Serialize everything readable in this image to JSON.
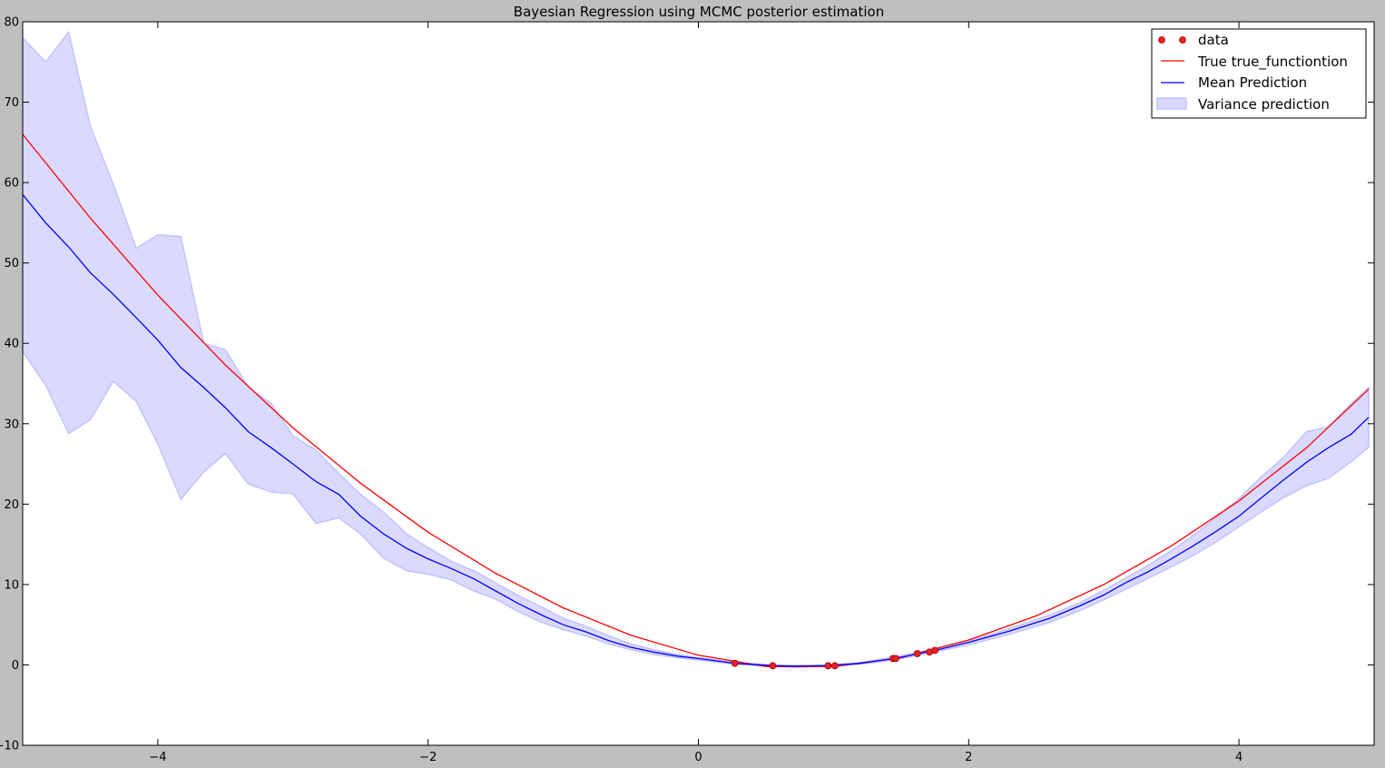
{
  "chart_data": {
    "type": "line",
    "title": "Bayesian Regression using MCMC posterior estimation",
    "xlabel": "",
    "ylabel": "",
    "xlim": [
      -5,
      5
    ],
    "ylim": [
      -10,
      80
    ],
    "x_ticks": [
      -4,
      -2,
      0,
      2,
      4
    ],
    "x_tick_labels": [
      "−4",
      "−2",
      "0",
      "2",
      "4"
    ],
    "y_ticks": [
      -10,
      0,
      10,
      20,
      30,
      40,
      50,
      60,
      70,
      80
    ],
    "y_tick_labels": [
      "−10",
      "0",
      "10",
      "20",
      "30",
      "40",
      "50",
      "60",
      "70",
      "80"
    ],
    "grid": false,
    "legend_position": "top-right",
    "colors": {
      "figure_background": "#bfbfbf",
      "axes_background": "#ffffff",
      "data": "#e8232b",
      "true_function": "#ff0000",
      "mean": "#0000ff",
      "variance_fill": "#dadaff",
      "variance_edge": "#c2c2ff"
    },
    "legend": [
      {
        "key": "data",
        "label": "data",
        "kind": "markers"
      },
      {
        "key": "true",
        "label": "True true_functiontion",
        "kind": "line"
      },
      {
        "key": "mean",
        "label": "Mean Prediction",
        "kind": "line"
      },
      {
        "key": "variance",
        "label": "Variance prediction",
        "kind": "fill"
      }
    ],
    "data_points": {
      "x": [
        0.27,
        0.55,
        0.96,
        1.01,
        1.44,
        1.46,
        1.62,
        1.71,
        1.75
      ],
      "y": [
        0.2,
        -0.1,
        -0.1,
        -0.1,
        0.8,
        0.8,
        1.4,
        1.6,
        1.8
      ]
    },
    "true_function": {
      "x": [
        -5.0,
        -4.5,
        -4.0,
        -3.5,
        -3.0,
        -2.5,
        -2.0,
        -1.5,
        -1.0,
        -0.5,
        0.0,
        0.5,
        1.0,
        1.5,
        2.0,
        2.5,
        3.0,
        3.5,
        4.0,
        4.5,
        4.96
      ],
      "y": [
        66.0,
        55.6,
        46.0,
        37.3,
        29.5,
        22.6,
        16.5,
        11.4,
        7.1,
        3.7,
        1.2,
        -0.2,
        -0.2,
        0.9,
        3.1,
        6.1,
        10.0,
        14.8,
        20.4,
        27.0,
        34.3
      ]
    },
    "mean_prediction": {
      "x": [
        -5.0,
        -4.83,
        -4.66,
        -4.5,
        -4.33,
        -4.16,
        -4.0,
        -3.83,
        -3.66,
        -3.5,
        -3.33,
        -3.16,
        -3.0,
        -2.83,
        -2.66,
        -2.5,
        -2.33,
        -2.16,
        -2.0,
        -1.83,
        -1.66,
        -1.5,
        -1.33,
        -1.16,
        -1.0,
        -0.83,
        -0.66,
        -0.5,
        -0.33,
        -0.16,
        0.0,
        0.27,
        0.55,
        0.7,
        0.96,
        1.2,
        1.45,
        1.6,
        1.75,
        2.0,
        2.3,
        2.6,
        2.83,
        3.0,
        3.16,
        3.33,
        3.5,
        3.66,
        3.83,
        4.0,
        4.16,
        4.33,
        4.5,
        4.66,
        4.83,
        4.96
      ],
      "y": [
        58.5,
        55.0,
        52.0,
        48.8,
        46.1,
        43.2,
        40.4,
        37.0,
        34.5,
        32.0,
        29.0,
        27.0,
        25.0,
        22.8,
        21.2,
        18.5,
        16.3,
        14.5,
        13.2,
        12.0,
        10.7,
        9.2,
        7.6,
        6.2,
        5.0,
        4.1,
        3.0,
        2.2,
        1.6,
        1.1,
        0.8,
        0.2,
        -0.1,
        -0.15,
        -0.1,
        0.2,
        0.8,
        1.3,
        1.8,
        2.8,
        4.2,
        5.8,
        7.4,
        8.7,
        10.2,
        11.6,
        13.2,
        14.8,
        16.6,
        18.5,
        20.7,
        23.0,
        25.2,
        27.0,
        28.7,
        30.8
      ]
    },
    "variance_prediction": {
      "x": [
        -5.0,
        -4.83,
        -4.66,
        -4.5,
        -4.33,
        -4.16,
        -4.0,
        -3.83,
        -3.66,
        -3.5,
        -3.33,
        -3.16,
        -3.0,
        -2.83,
        -2.66,
        -2.5,
        -2.33,
        -2.16,
        -2.0,
        -1.83,
        -1.66,
        -1.5,
        -1.33,
        -1.16,
        -1.0,
        -0.83,
        -0.66,
        -0.5,
        -0.33,
        -0.16,
        0.0,
        0.27,
        0.55,
        0.7,
        0.96,
        1.2,
        1.45,
        1.6,
        1.75,
        2.0,
        2.3,
        2.6,
        2.83,
        3.0,
        3.16,
        3.33,
        3.5,
        3.66,
        3.83,
        4.0,
        4.16,
        4.33,
        4.5,
        4.66,
        4.83,
        4.96
      ],
      "upper": [
        78.0,
        75.0,
        78.7,
        67.0,
        59.8,
        51.8,
        53.5,
        53.3,
        40.0,
        39.2,
        34.5,
        32.5,
        28.5,
        26.7,
        23.8,
        21.2,
        19.0,
        16.3,
        14.6,
        12.9,
        11.7,
        10.2,
        8.6,
        7.2,
        5.8,
        4.8,
        3.6,
        2.6,
        1.9,
        1.3,
        0.9,
        0.3,
        0.0,
        -0.05,
        0.0,
        0.3,
        1.0,
        1.5,
        2.0,
        3.0,
        4.5,
        6.2,
        7.8,
        9.3,
        10.8,
        12.4,
        14.2,
        16.1,
        18.3,
        20.7,
        23.3,
        25.8,
        29.0,
        29.6,
        32.5,
        34.5
      ],
      "lower": [
        39.0,
        34.8,
        28.8,
        30.5,
        35.3,
        32.8,
        27.5,
        20.6,
        24.0,
        26.3,
        22.5,
        21.5,
        21.3,
        17.6,
        18.3,
        16.3,
        13.3,
        11.7,
        11.3,
        10.6,
        9.2,
        8.2,
        6.6,
        5.3,
        4.4,
        3.6,
        2.6,
        1.9,
        1.3,
        0.9,
        0.6,
        0.1,
        -0.2,
        -0.3,
        -0.2,
        0.1,
        0.6,
        1.1,
        1.6,
        2.5,
        3.8,
        5.3,
        6.8,
        8.1,
        9.4,
        10.8,
        12.2,
        13.6,
        15.3,
        17.2,
        19.0,
        20.8,
        22.3,
        23.2,
        25.3,
        27.1
      ]
    }
  }
}
